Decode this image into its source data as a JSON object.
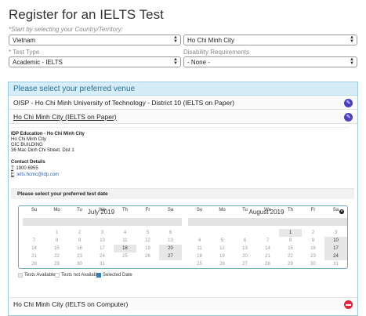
{
  "page": {
    "title": "Register for an IELTS Test",
    "hint": "*Start by selecting your Country/Territory:"
  },
  "country": {
    "value": "Vietnam"
  },
  "city": {
    "value": "Ho Chi Minh City"
  },
  "test_type": {
    "label": "* Test Type",
    "value": "Academic - IELTS"
  },
  "disability": {
    "label": "Disability Requirements",
    "value": "- None -"
  },
  "venues": {
    "header": "Please select your preferred venue",
    "items": [
      {
        "name": "OISP - Ho Chi Minh University of Technology - District 10 (IELTS on Paper)"
      },
      {
        "name": "Ho Chi Minh City (IELTS on Paper)"
      },
      {
        "name": "Ho Chi Minh City (IELTS on Computer)"
      }
    ]
  },
  "venue_detail": {
    "org": "IDP Education - Ho Chi Minh City",
    "line1": "Ho Chi Minh City",
    "line2": "GIC BUILDING",
    "line3": "36 Mac Dinh Chi Street, Dist 1",
    "contact_heading": "Contact Details",
    "phone_label": "T",
    "phone": ": 1900 6955",
    "email_label": "E",
    "email": ": ielts.hcmc@idp.com"
  },
  "date_prompt": "Please select your preferred test date",
  "calendars": [
    {
      "month": "July 2019",
      "days": [
        "Su",
        "Mo",
        "Tu",
        "We",
        "Th",
        "Fr",
        "Sa"
      ],
      "weeks": [
        [
          "",
          "1",
          "2",
          "3",
          "4",
          "5",
          "6"
        ],
        [
          "7",
          "8",
          "9",
          "10",
          "11",
          "12",
          "13"
        ],
        [
          "14",
          "15",
          "16",
          "17",
          "18",
          "19",
          "20"
        ],
        [
          "21",
          "22",
          "23",
          "24",
          "25",
          "26",
          "27"
        ],
        [
          "28",
          "29",
          "30",
          "31",
          "",
          "",
          ""
        ]
      ],
      "available": [
        "18",
        "20",
        "27"
      ]
    },
    {
      "month": "August 2019",
      "days": [
        "Su",
        "Mo",
        "Tu",
        "We",
        "Th",
        "Fr",
        "Sa"
      ],
      "weeks": [
        [
          "",
          "",
          "",
          "",
          "1",
          "2",
          "3"
        ],
        [
          "4",
          "5",
          "6",
          "7",
          "8",
          "9",
          "10"
        ],
        [
          "11",
          "12",
          "13",
          "14",
          "15",
          "16",
          "17"
        ],
        [
          "18",
          "19",
          "20",
          "21",
          "22",
          "23",
          "24"
        ],
        [
          "25",
          "26",
          "27",
          "28",
          "29",
          "30",
          "31"
        ]
      ],
      "available": [
        "1",
        "10",
        "17",
        "24"
      ]
    }
  ],
  "close_icon": "close-icon",
  "legend": {
    "available": "Tests Available",
    "not_available": "Tests not Available",
    "selected": "Selected Date"
  },
  "colors": {
    "selected": "#2f7fc1",
    "available": "#e7e7e7",
    "header_bg": "#d6edf8",
    "header_text": "#2a6e94"
  }
}
